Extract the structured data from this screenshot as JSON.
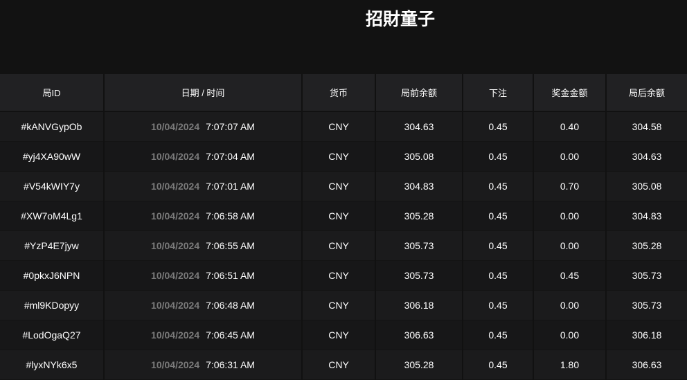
{
  "title": "招財童子",
  "headers": [
    "局ID",
    "日期 / 时间",
    "货币",
    "局前余额",
    "下注",
    "奖金金额",
    "局后余额"
  ],
  "rows": [
    {
      "id": "#kANVGypOb",
      "date": "10/04/2024",
      "time": "7:07:07 AM",
      "currency": "CNY",
      "before": "304.63",
      "bet": "0.45",
      "win": "0.40",
      "after": "304.58"
    },
    {
      "id": "#yj4XA90wW",
      "date": "10/04/2024",
      "time": "7:07:04 AM",
      "currency": "CNY",
      "before": "305.08",
      "bet": "0.45",
      "win": "0.00",
      "after": "304.63"
    },
    {
      "id": "#V54kWIY7y",
      "date": "10/04/2024",
      "time": "7:07:01 AM",
      "currency": "CNY",
      "before": "304.83",
      "bet": "0.45",
      "win": "0.70",
      "after": "305.08"
    },
    {
      "id": "#XW7oM4Lg1",
      "date": "10/04/2024",
      "time": "7:06:58 AM",
      "currency": "CNY",
      "before": "305.28",
      "bet": "0.45",
      "win": "0.00",
      "after": "304.83"
    },
    {
      "id": "#YzP4E7jyw",
      "date": "10/04/2024",
      "time": "7:06:55 AM",
      "currency": "CNY",
      "before": "305.73",
      "bet": "0.45",
      "win": "0.00",
      "after": "305.28"
    },
    {
      "id": "#0pkxJ6NPN",
      "date": "10/04/2024",
      "time": "7:06:51 AM",
      "currency": "CNY",
      "before": "305.73",
      "bet": "0.45",
      "win": "0.45",
      "after": "305.73"
    },
    {
      "id": "#ml9KDopyy",
      "date": "10/04/2024",
      "time": "7:06:48 AM",
      "currency": "CNY",
      "before": "306.18",
      "bet": "0.45",
      "win": "0.00",
      "after": "305.73"
    },
    {
      "id": "#LodOgaQ27",
      "date": "10/04/2024",
      "time": "7:06:45 AM",
      "currency": "CNY",
      "before": "306.63",
      "bet": "0.45",
      "win": "0.00",
      "after": "306.18"
    },
    {
      "id": "#lyxNYk6x5",
      "date": "10/04/2024",
      "time": "7:06:31 AM",
      "currency": "CNY",
      "before": "305.28",
      "bet": "0.45",
      "win": "1.80",
      "after": "306.63"
    }
  ]
}
